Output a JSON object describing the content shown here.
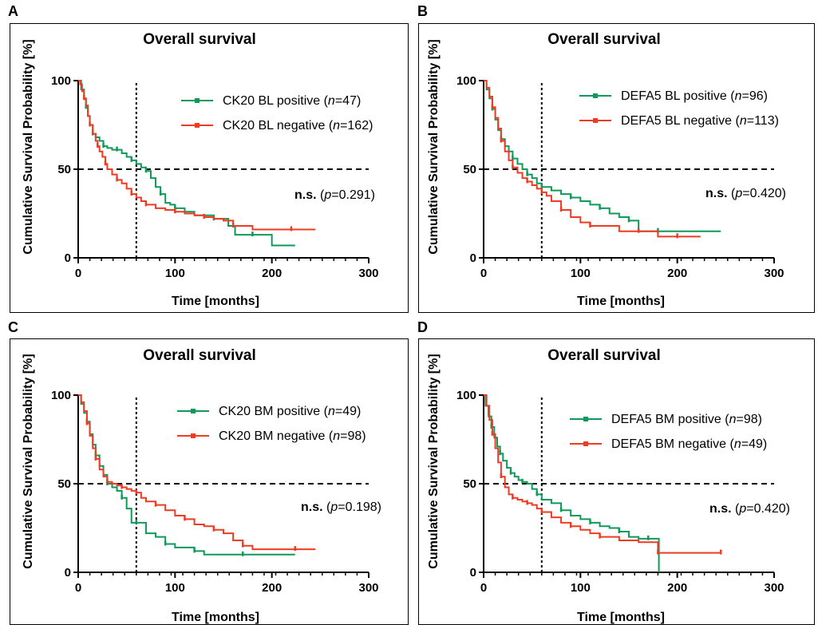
{
  "colors": {
    "green": "#0f9a5a",
    "red": "#ee3b23",
    "axis": "#000000"
  },
  "chart_data": [
    {
      "letter": "A",
      "type": "line",
      "title": "Overall survival",
      "xlabel": "Time [months]",
      "ylabel": "Cumulative Survival Probability [%]",
      "xlim": [
        0,
        300
      ],
      "ylim": [
        0,
        100
      ],
      "xticks": [
        "0",
        "100",
        "200",
        "300"
      ],
      "yticks": [
        "0",
        "50",
        "100"
      ],
      "reference_lines": {
        "x": 60,
        "y": 50
      },
      "annotation": {
        "bold": "n.s.",
        "p_label": "p",
        "p_value": "=0.291)"
      },
      "legend_position": "top-right",
      "series": [
        {
          "name": "CK20 BL positive (",
          "n_label": "n",
          "n_value": "=47)",
          "color": "green",
          "x": [
            0,
            3,
            6,
            8,
            10,
            12,
            15,
            18,
            22,
            26,
            30,
            35,
            40,
            45,
            50,
            55,
            60,
            65,
            70,
            75,
            80,
            85,
            90,
            95,
            100,
            110,
            120,
            140,
            155,
            162,
            180,
            200,
            224
          ],
          "y": [
            100,
            95,
            90,
            85,
            80,
            75,
            70,
            68,
            66,
            63,
            62,
            61,
            61,
            59,
            57,
            55,
            53,
            51,
            49,
            45,
            40,
            36,
            31,
            30,
            28,
            26,
            24,
            22,
            18,
            13,
            13,
            7,
            7
          ]
        },
        {
          "name": "CK20 BL negative (",
          "n_label": "n",
          "n_value": "=162)",
          "color": "red",
          "x": [
            0,
            2,
            4,
            6,
            8,
            10,
            12,
            15,
            18,
            20,
            22,
            25,
            28,
            30,
            35,
            40,
            45,
            50,
            55,
            60,
            65,
            70,
            80,
            90,
            100,
            110,
            120,
            130,
            140,
            150,
            160,
            180,
            200,
            220,
            245
          ],
          "y": [
            100,
            98,
            94,
            90,
            86,
            80,
            75,
            70,
            66,
            63,
            60,
            57,
            53,
            50,
            47,
            44,
            42,
            39,
            36,
            34,
            32,
            30,
            28,
            27,
            26,
            25,
            24,
            23,
            22,
            21,
            18,
            16,
            16,
            16,
            16
          ]
        }
      ]
    },
    {
      "letter": "B",
      "type": "line",
      "title": "Overall survival",
      "xlabel": "Time [months]",
      "ylabel": "Cumulative Survival Probability [%]",
      "xlim": [
        0,
        300
      ],
      "ylim": [
        0,
        100
      ],
      "xticks": [
        "0",
        "100",
        "200",
        "300"
      ],
      "yticks": [
        "0",
        "50",
        "100"
      ],
      "reference_lines": {
        "x": 60,
        "y": 50
      },
      "annotation": {
        "bold": "n.s.",
        "p_label": "p",
        "p_value": "=0.420)"
      },
      "legend_position": "top-right",
      "series": [
        {
          "name": "DEFA5 BL positive (",
          "n_label": "n",
          "n_value": "=96)",
          "color": "green",
          "x": [
            0,
            3,
            6,
            9,
            12,
            15,
            18,
            22,
            26,
            30,
            35,
            40,
            45,
            50,
            55,
            60,
            70,
            80,
            90,
            100,
            110,
            120,
            130,
            140,
            150,
            160,
            170,
            180,
            200,
            245
          ],
          "y": [
            100,
            95,
            90,
            84,
            78,
            72,
            67,
            63,
            60,
            56,
            53,
            50,
            47,
            45,
            42,
            40,
            38,
            36,
            34,
            32,
            30,
            28,
            25,
            23,
            21,
            15,
            15,
            15,
            15,
            15
          ]
        },
        {
          "name": "DEFA5 BL negative (",
          "n_label": "n",
          "n_value": "=113)",
          "color": "red",
          "x": [
            0,
            3,
            6,
            9,
            12,
            15,
            18,
            22,
            26,
            30,
            35,
            40,
            45,
            50,
            55,
            60,
            65,
            70,
            80,
            90,
            100,
            110,
            120,
            140,
            160,
            175,
            180,
            200,
            224
          ],
          "y": [
            100,
            96,
            91,
            85,
            79,
            73,
            66,
            60,
            55,
            51,
            48,
            45,
            43,
            41,
            39,
            37,
            35,
            32,
            27,
            23,
            20,
            18,
            18,
            15,
            15,
            15,
            12,
            12,
            12
          ]
        }
      ]
    },
    {
      "letter": "C",
      "type": "line",
      "title": "Overall survival",
      "xlabel": "Time [months]",
      "ylabel": "Cumulative Survival Probability [%]",
      "xlim": [
        0,
        300
      ],
      "ylim": [
        0,
        100
      ],
      "xticks": [
        "0",
        "100",
        "200",
        "300"
      ],
      "yticks": [
        "0",
        "50",
        "100"
      ],
      "reference_lines": {
        "x": 60,
        "y": 50
      },
      "annotation": {
        "bold": "n.s.",
        "p_label": "p",
        "p_value": "=0.198)"
      },
      "legend_position": "top-right",
      "series": [
        {
          "name": "CK20 BM positive (",
          "n_label": "n",
          "n_value": "=49)",
          "color": "green",
          "x": [
            0,
            3,
            6,
            9,
            12,
            15,
            18,
            22,
            26,
            30,
            35,
            40,
            45,
            50,
            55,
            60,
            70,
            80,
            90,
            100,
            110,
            120,
            130,
            150,
            170,
            190,
            224
          ],
          "y": [
            100,
            95,
            90,
            85,
            78,
            72,
            66,
            60,
            55,
            50,
            48,
            46,
            42,
            36,
            28,
            28,
            22,
            20,
            16,
            14,
            14,
            12,
            10,
            10,
            10,
            10,
            10
          ]
        },
        {
          "name": "CK20 BM negative (",
          "n_label": "n",
          "n_value": "=98)",
          "color": "red",
          "x": [
            0,
            3,
            6,
            9,
            12,
            15,
            18,
            22,
            26,
            30,
            35,
            40,
            45,
            50,
            55,
            60,
            65,
            70,
            80,
            90,
            100,
            110,
            120,
            130,
            140,
            150,
            160,
            170,
            180,
            200,
            224,
            245
          ],
          "y": [
            100,
            96,
            91,
            84,
            77,
            70,
            64,
            58,
            54,
            51,
            50,
            49,
            48,
            47,
            46,
            45,
            42,
            40,
            38,
            35,
            32,
            30,
            27,
            26,
            24,
            22,
            18,
            15,
            13,
            13,
            13,
            13
          ]
        }
      ]
    },
    {
      "letter": "D",
      "type": "line",
      "title": "Overall survival",
      "xlabel": "Time [months]",
      "ylabel": "Cumulative Survival Probability [%]",
      "xlim": [
        0,
        300
      ],
      "ylim": [
        0,
        100
      ],
      "xticks": [
        "0",
        "100",
        "200",
        "300"
      ],
      "yticks": [
        "0",
        "50",
        "100"
      ],
      "reference_lines": {
        "x": 60,
        "y": 50
      },
      "annotation": {
        "bold": "n.s.",
        "p_label": "p",
        "p_value": "=0.420)"
      },
      "legend_position": "top-right",
      "series": [
        {
          "name": "DEFA5 BM positive (",
          "n_label": "n",
          "n_value": "=98)",
          "color": "green",
          "x": [
            0,
            2,
            5,
            8,
            11,
            14,
            17,
            20,
            24,
            28,
            32,
            36,
            40,
            45,
            50,
            55,
            60,
            70,
            80,
            90,
            100,
            110,
            120,
            130,
            140,
            150,
            160,
            170,
            180,
            181
          ],
          "y": [
            100,
            94,
            88,
            82,
            76,
            71,
            67,
            63,
            59,
            56,
            54,
            52,
            51,
            50,
            47,
            44,
            41,
            39,
            35,
            32,
            30,
            28,
            26,
            25,
            23,
            20,
            19,
            19,
            19,
            0
          ]
        },
        {
          "name": "DEFA5 BM negative (",
          "n_label": "n",
          "n_value": "=49)",
          "color": "red",
          "x": [
            0,
            3,
            6,
            9,
            12,
            15,
            18,
            22,
            26,
            30,
            35,
            40,
            45,
            50,
            55,
            60,
            70,
            80,
            90,
            100,
            110,
            120,
            140,
            160,
            180,
            200,
            224,
            245
          ],
          "y": [
            100,
            94,
            86,
            78,
            70,
            62,
            54,
            48,
            44,
            42,
            41,
            40,
            39,
            38,
            36,
            34,
            31,
            28,
            26,
            24,
            22,
            20,
            18,
            17,
            11,
            11,
            11,
            11
          ]
        }
      ]
    }
  ]
}
